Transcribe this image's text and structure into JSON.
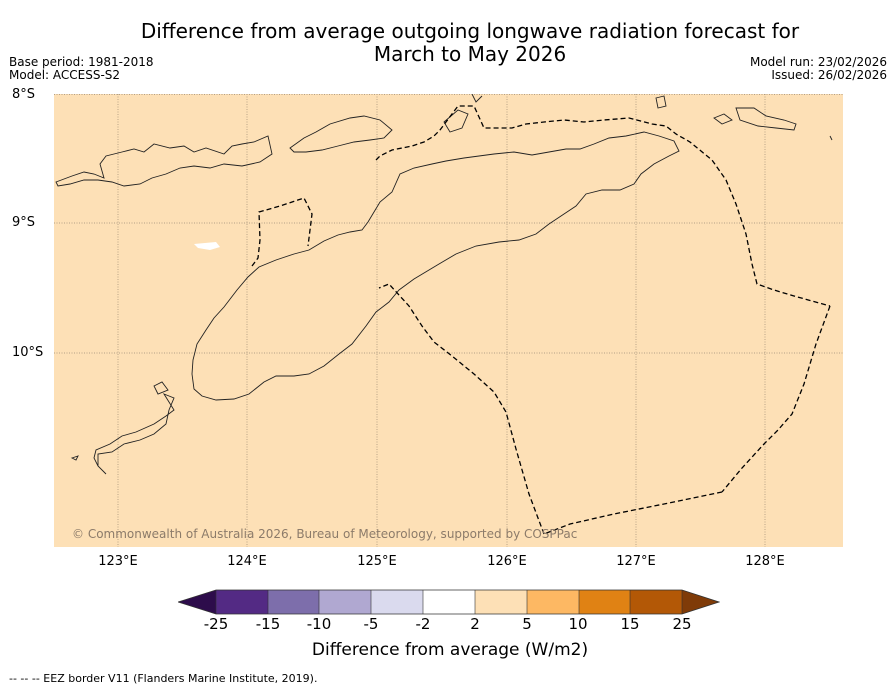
{
  "title": "Difference from average outgoing longwave radiation forecast for March to May 2026",
  "title_line1": "Difference from average outgoing longwave radiation forecast for",
  "title_line2": "March to May 2026",
  "base_period": "Base period: 1981-2018",
  "model": "Model: ACCESS-S2",
  "model_run": "Model run: 23/02/2026",
  "issued": "Issued: 26/02/2026",
  "lat_labels": [
    "8°S",
    "9°S",
    "10°S"
  ],
  "lon_labels": [
    "123°E",
    "124°E",
    "125°E",
    "126°E",
    "127°E",
    "128°E"
  ],
  "copyright": "© Commonwealth of Australia 2026, Bureau of Meteorology, supported by COSPPac",
  "map_fill_category": "2 to 5",
  "colors": {
    "map_fill": "#fde0b6",
    "land_line": "#222222",
    "eez_line": "#000000",
    "grid": "#9c8a75"
  },
  "colorbar": {
    "label": "Difference from average (W/m2)",
    "ticks": [
      "-25",
      "-15",
      "-10",
      "-5",
      "-2",
      "2",
      "5",
      "10",
      "15",
      "25"
    ],
    "colors": [
      "#2d0c4b",
      "#532a84",
      "#7d6eab",
      "#b0a8d1",
      "#dadaee",
      "#ffffff",
      "#fde0b6",
      "#fdb863",
      "#e08214",
      "#b35806",
      "#7f3b08"
    ]
  },
  "footnote": "-- -- -- EEZ border V11 (Flanders Marine Institute, 2019)."
}
